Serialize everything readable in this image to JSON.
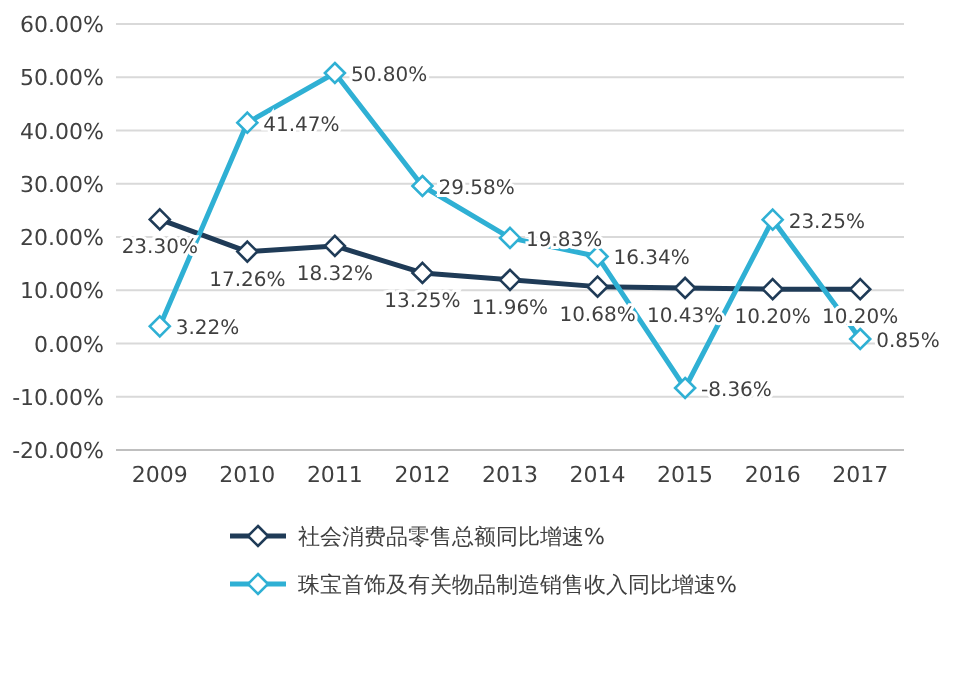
{
  "chart_data": {
    "type": "line",
    "categories": [
      "2009",
      "2010",
      "2011",
      "2012",
      "2013",
      "2014",
      "2015",
      "2016",
      "2017"
    ],
    "series": [
      {
        "name": "社会消费品零售总额同比增速%",
        "color": "#1f3b57",
        "values": [
          23.3,
          17.26,
          18.32,
          13.25,
          11.96,
          10.68,
          10.43,
          10.2,
          10.2
        ],
        "value_labels": [
          "23.30%",
          "17.26%",
          "18.32%",
          "13.25%",
          "11.96%",
          "10.68%",
          "10.43%",
          "10.20%",
          "10.20%"
        ]
      },
      {
        "name": "珠宝首饰及有关物品制造销售收入同比增速%",
        "color": "#2fb0d4",
        "values": [
          3.22,
          41.47,
          50.8,
          29.58,
          19.83,
          16.34,
          -8.36,
          23.25,
          0.85
        ],
        "value_labels": [
          "3.22%",
          "41.47%",
          "50.80%",
          "29.58%",
          "19.83%",
          "16.34%",
          "-8.36%",
          "23.25%",
          "0.85%"
        ]
      }
    ],
    "ylim": [
      -20,
      60
    ],
    "yticks": [
      {
        "value": -20,
        "label": "-20.00%"
      },
      {
        "value": -10,
        "label": "-10.00%"
      },
      {
        "value": 0,
        "label": "0.00%"
      },
      {
        "value": 10,
        "label": "10.00%"
      },
      {
        "value": 20,
        "label": "20.00%"
      },
      {
        "value": 30,
        "label": "30.00%"
      },
      {
        "value": 40,
        "label": "40.00%"
      },
      {
        "value": 50,
        "label": "50.00%"
      },
      {
        "value": 60,
        "label": "60.00%"
      }
    ],
    "grid": "y",
    "legend": "bottom",
    "marker": "diamond",
    "line_style": "solid"
  }
}
